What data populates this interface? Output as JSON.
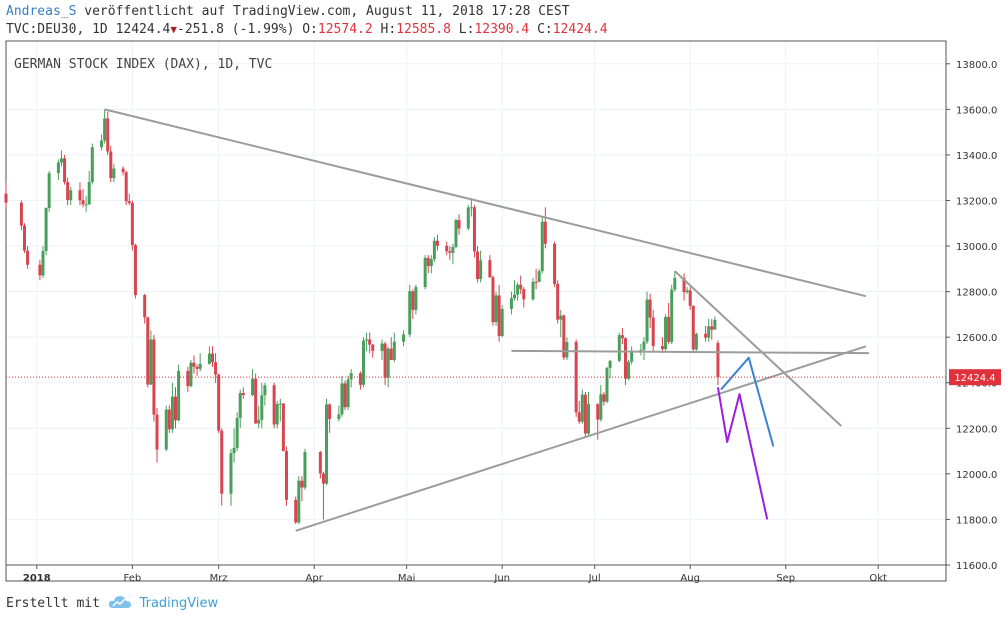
{
  "header": {
    "author": "Andreas_S",
    "published_text": "veröffentlicht auf TradingView.com, August 11, 2018 17:28 CEST",
    "symbol_text": "TVC:DEU30, 1D",
    "last_price": "12424.4",
    "change_text": "-251.8 (-1.99%)",
    "o_label": "O:",
    "o_value": "12574.2",
    "h_label": "H:",
    "h_value": "12585.8",
    "l_label": "L:",
    "l_value": "12390.4",
    "c_label": "C:",
    "c_value": "12424.4"
  },
  "footer": {
    "created_with": "Erstellt mit",
    "brand": "TradingView"
  },
  "colors": {
    "up": "#4a9e5c",
    "down": "#d64550",
    "trendline": "#9c9c9c",
    "price_line": "#e0323c",
    "price_badge": "#e0323c",
    "forecast_blue": "#3a82d6",
    "forecast_purple": "#9b1ee0",
    "grid": "#eef1f5",
    "axis_text": "#333333"
  },
  "chart_data": {
    "type": "candlestick",
    "title": "GERMAN STOCK INDEX (DAX), 1D, TVC",
    "ylim": [
      11600,
      13900
    ],
    "y_ticks": [
      11600,
      11800,
      12000,
      12200,
      12400,
      12600,
      12800,
      13000,
      13200,
      13400,
      13600,
      13800
    ],
    "y_tick_labels": [
      "11600.0",
      "11800.0",
      "12000.0",
      "12200.0",
      "12400.0",
      "12600.0",
      "12800.0",
      "13000.0",
      "13200.0",
      "13400.0",
      "13600.0",
      "13800.0"
    ],
    "x_labels": [
      "2018",
      "Feb",
      "Mrz",
      "Apr",
      "Mai",
      "Jun",
      "Jul",
      "Aug",
      "Sep",
      "Okt"
    ],
    "x_label_dates": [
      "2018-01-01",
      "2018-02-01",
      "2018-03-01",
      "2018-04-01",
      "2018-05-01",
      "2018-06-01",
      "2018-07-01",
      "2018-08-01",
      "2018-09-01",
      "2018-10-01"
    ],
    "x_start": "2017-12-22",
    "x_end": "2018-10-23",
    "last_price_label": "12424.4",
    "last_price": 12424.4,
    "candles": [
      [
        "2017-12-22",
        13230,
        13280,
        13170,
        13190
      ],
      [
        "2017-12-27",
        13190,
        13200,
        13070,
        13090
      ],
      [
        "2017-12-28",
        13090,
        13100,
        12970,
        12980
      ],
      [
        "2017-12-29",
        12980,
        13000,
        12900,
        12918
      ],
      [
        "2018-01-02",
        12918,
        12940,
        12850,
        12871
      ],
      [
        "2018-01-03",
        12871,
        13000,
        12860,
        12978
      ],
      [
        "2018-01-04",
        12978,
        13170,
        12960,
        13167
      ],
      [
        "2018-01-05",
        13167,
        13330,
        13150,
        13320
      ],
      [
        "2018-01-08",
        13320,
        13380,
        13290,
        13367
      ],
      [
        "2018-01-09",
        13367,
        13420,
        13350,
        13385
      ],
      [
        "2018-01-10",
        13385,
        13400,
        13270,
        13281
      ],
      [
        "2018-01-11",
        13281,
        13300,
        13180,
        13202
      ],
      [
        "2018-01-12",
        13202,
        13260,
        13180,
        13245
      ],
      [
        "2018-01-15",
        13245,
        13280,
        13180,
        13201
      ],
      [
        "2018-01-16",
        13201,
        13250,
        13170,
        13183
      ],
      [
        "2018-01-17",
        13183,
        13220,
        13150,
        13183
      ],
      [
        "2018-01-18",
        13183,
        13330,
        13180,
        13281
      ],
      [
        "2018-01-19",
        13281,
        13450,
        13270,
        13434
      ],
      [
        "2018-01-22",
        13434,
        13490,
        13420,
        13463
      ],
      [
        "2018-01-23",
        13463,
        13600,
        13450,
        13560
      ],
      [
        "2018-01-24",
        13560,
        13590,
        13400,
        13415
      ],
      [
        "2018-01-25",
        13415,
        13440,
        13280,
        13298
      ],
      [
        "2018-01-26",
        13298,
        13360,
        13280,
        13340
      ],
      [
        "2018-01-29",
        13340,
        13350,
        13310,
        13324
      ],
      [
        "2018-01-30",
        13324,
        13330,
        13180,
        13197
      ],
      [
        "2018-01-31",
        13197,
        13230,
        13180,
        13189
      ],
      [
        "2018-02-01",
        13189,
        13200,
        12980,
        13004
      ],
      [
        "2018-02-02",
        13004,
        13010,
        12770,
        12785
      ],
      [
        "2018-02-05",
        12785,
        12790,
        12660,
        12687
      ],
      [
        "2018-02-06",
        12687,
        12690,
        12380,
        12392
      ],
      [
        "2018-02-07",
        12392,
        12630,
        12390,
        12590
      ],
      [
        "2018-02-08",
        12590,
        12610,
        12230,
        12260
      ],
      [
        "2018-02-09",
        12260,
        12290,
        12050,
        12107
      ],
      [
        "2018-02-12",
        12107,
        12300,
        12100,
        12282
      ],
      [
        "2018-02-13",
        12282,
        12300,
        12180,
        12196
      ],
      [
        "2018-02-14",
        12196,
        12400,
        12180,
        12339
      ],
      [
        "2018-02-15",
        12339,
        12380,
        12200,
        12235
      ],
      [
        "2018-02-16",
        12235,
        12480,
        12230,
        12452
      ],
      [
        "2018-02-19",
        12452,
        12470,
        12360,
        12385
      ],
      [
        "2018-02-20",
        12385,
        12500,
        12380,
        12488
      ],
      [
        "2018-02-21",
        12488,
        12520,
        12440,
        12470
      ],
      [
        "2018-02-22",
        12470,
        12480,
        12430,
        12461
      ],
      [
        "2018-02-23",
        12461,
        12530,
        12450,
        12483
      ],
      [
        "2018-02-26",
        12483,
        12560,
        12480,
        12528
      ],
      [
        "2018-02-27",
        12528,
        12560,
        12470,
        12490
      ],
      [
        "2018-02-28",
        12490,
        12530,
        12400,
        12436
      ],
      [
        "2018-03-01",
        12436,
        12440,
        12180,
        12190
      ],
      [
        "2018-03-02",
        12190,
        12200,
        11860,
        11913
      ],
      [
        "2018-03-05",
        11913,
        12110,
        11860,
        12091
      ],
      [
        "2018-03-06",
        12091,
        12200,
        12050,
        12114
      ],
      [
        "2018-03-07",
        12114,
        12270,
        12100,
        12245
      ],
      [
        "2018-03-08",
        12245,
        12370,
        12200,
        12355
      ],
      [
        "2018-03-09",
        12355,
        12380,
        12330,
        12346
      ],
      [
        "2018-03-12",
        12346,
        12460,
        12340,
        12418
      ],
      [
        "2018-03-13",
        12418,
        12440,
        12220,
        12221
      ],
      [
        "2018-03-14",
        12221,
        12300,
        12200,
        12237
      ],
      [
        "2018-03-15",
        12237,
        12400,
        12200,
        12345
      ],
      [
        "2018-03-16",
        12345,
        12400,
        12300,
        12389
      ],
      [
        "2018-03-19",
        12389,
        12400,
        12200,
        12217
      ],
      [
        "2018-03-20",
        12217,
        12320,
        12200,
        12307
      ],
      [
        "2018-03-21",
        12307,
        12330,
        12230,
        12309
      ],
      [
        "2018-03-22",
        12309,
        12310,
        12100,
        12100
      ],
      [
        "2018-03-23",
        12100,
        12120,
        11860,
        11886
      ],
      [
        "2018-03-26",
        11886,
        11900,
        11780,
        11787
      ],
      [
        "2018-03-27",
        11787,
        11990,
        11780,
        11970
      ],
      [
        "2018-03-28",
        11970,
        11990,
        11880,
        11940
      ],
      [
        "2018-03-29",
        11940,
        12110,
        11930,
        12096
      ],
      [
        "2018-04-03",
        12096,
        12100,
        11980,
        12002
      ],
      [
        "2018-04-04",
        12002,
        12010,
        11800,
        11957
      ],
      [
        "2018-04-05",
        11957,
        12330,
        11950,
        12305
      ],
      [
        "2018-04-06",
        12305,
        12310,
        12180,
        12241
      ],
      [
        "2018-04-09",
        12241,
        12300,
        12230,
        12261
      ],
      [
        "2018-04-10",
        12261,
        12430,
        12250,
        12397
      ],
      [
        "2018-04-11",
        12397,
        12410,
        12280,
        12293
      ],
      [
        "2018-04-12",
        12293,
        12430,
        12280,
        12415
      ],
      [
        "2018-04-13",
        12415,
        12460,
        12380,
        12442
      ],
      [
        "2018-04-16",
        12442,
        12450,
        12370,
        12391
      ],
      [
        "2018-04-17",
        12391,
        12600,
        12380,
        12585
      ],
      [
        "2018-04-18",
        12585,
        12620,
        12540,
        12590
      ],
      [
        "2018-04-19",
        12590,
        12620,
        12530,
        12567
      ],
      [
        "2018-04-20",
        12567,
        12570,
        12510,
        12540
      ],
      [
        "2018-04-23",
        12540,
        12590,
        12500,
        12572
      ],
      [
        "2018-04-24",
        12572,
        12580,
        12390,
        12422
      ],
      [
        "2018-04-25",
        12422,
        12560,
        12380,
        12550
      ],
      [
        "2018-04-26",
        12550,
        12600,
        12500,
        12500
      ],
      [
        "2018-04-27",
        12500,
        12620,
        12490,
        12580
      ],
      [
        "2018-04-30",
        12580,
        12630,
        12560,
        12612
      ],
      [
        "2018-05-02",
        12612,
        12830,
        12600,
        12802
      ],
      [
        "2018-05-03",
        12802,
        12810,
        12680,
        12720
      ],
      [
        "2018-05-04",
        12720,
        12830,
        12700,
        12820
      ],
      [
        "2018-05-07",
        12820,
        12960,
        12810,
        12948
      ],
      [
        "2018-05-08",
        12948,
        12960,
        12880,
        12912
      ],
      [
        "2018-05-09",
        12912,
        12960,
        12880,
        12943
      ],
      [
        "2018-05-10",
        12943,
        13040,
        12930,
        13023
      ],
      [
        "2018-05-11",
        13023,
        13050,
        12980,
        13001
      ],
      [
        "2018-05-14",
        13001,
        13020,
        12960,
        12977
      ],
      [
        "2018-05-15",
        12977,
        13000,
        12940,
        12970
      ],
      [
        "2018-05-16",
        12970,
        13010,
        12920,
        12996
      ],
      [
        "2018-05-17",
        12996,
        13120,
        12990,
        13114
      ],
      [
        "2018-05-18",
        13114,
        13140,
        13050,
        13077
      ],
      [
        "2018-05-21",
        13077,
        13180,
        13070,
        13169
      ],
      [
        "2018-05-22",
        13169,
        13210,
        13130,
        13170
      ],
      [
        "2018-05-23",
        13170,
        13180,
        12950,
        12976
      ],
      [
        "2018-05-24",
        12976,
        13000,
        12840,
        12855
      ],
      [
        "2018-05-25",
        12855,
        12980,
        12840,
        12938
      ],
      [
        "2018-05-28",
        12938,
        12960,
        12860,
        12863
      ],
      [
        "2018-05-29",
        12863,
        12870,
        12650,
        12666
      ],
      [
        "2018-05-30",
        12666,
        12800,
        12650,
        12783
      ],
      [
        "2018-05-31",
        12783,
        12830,
        12580,
        12605
      ],
      [
        "2018-06-01",
        12605,
        12740,
        12600,
        12724
      ],
      [
        "2018-06-04",
        12724,
        12800,
        12700,
        12771
      ],
      [
        "2018-06-05",
        12771,
        12850,
        12760,
        12787
      ],
      [
        "2018-06-06",
        12787,
        12840,
        12760,
        12830
      ],
      [
        "2018-06-07",
        12830,
        12870,
        12790,
        12811
      ],
      [
        "2018-06-08",
        12811,
        12820,
        12730,
        12766
      ],
      [
        "2018-06-11",
        12766,
        12860,
        12760,
        12843
      ],
      [
        "2018-06-12",
        12843,
        12900,
        12810,
        12842
      ],
      [
        "2018-06-13",
        12842,
        12900,
        12850,
        12890
      ],
      [
        "2018-06-14",
        12890,
        13130,
        12880,
        13107
      ],
      [
        "2018-06-15",
        13107,
        13170,
        12990,
        13010
      ],
      [
        "2018-06-18",
        13010,
        13020,
        12820,
        12834
      ],
      [
        "2018-06-19",
        12834,
        12850,
        12660,
        12677
      ],
      [
        "2018-06-20",
        12677,
        12720,
        12600,
        12695
      ],
      [
        "2018-06-21",
        12695,
        12700,
        12500,
        12511
      ],
      [
        "2018-06-22",
        12511,
        12600,
        12500,
        12579
      ],
      [
        "2018-06-25",
        12579,
        12590,
        12250,
        12270
      ],
      [
        "2018-06-26",
        12270,
        12320,
        12220,
        12229
      ],
      [
        "2018-06-27",
        12229,
        12370,
        12220,
        12348
      ],
      [
        "2018-06-28",
        12348,
        12360,
        12160,
        12177
      ],
      [
        "2018-06-29",
        12177,
        12360,
        12170,
        12306
      ],
      [
        "2018-07-02",
        12306,
        12310,
        12150,
        12238
      ],
      [
        "2018-07-03",
        12238,
        12390,
        12230,
        12349
      ],
      [
        "2018-07-04",
        12349,
        12360,
        12300,
        12317
      ],
      [
        "2018-07-05",
        12317,
        12470,
        12310,
        12465
      ],
      [
        "2018-07-06",
        12465,
        12500,
        12420,
        12496
      ],
      [
        "2018-07-09",
        12496,
        12620,
        12490,
        12609
      ],
      [
        "2018-07-10",
        12609,
        12640,
        12570,
        12595
      ],
      [
        "2018-07-11",
        12595,
        12600,
        12390,
        12418
      ],
      [
        "2018-07-12",
        12418,
        12500,
        12410,
        12492
      ],
      [
        "2018-07-13",
        12492,
        12560,
        12480,
        12540
      ],
      [
        "2018-07-16",
        12540,
        12570,
        12520,
        12545
      ],
      [
        "2018-07-17",
        12545,
        12600,
        12500,
        12580
      ],
      [
        "2018-07-18",
        12580,
        12800,
        12570,
        12765
      ],
      [
        "2018-07-19",
        12765,
        12790,
        12640,
        12686
      ],
      [
        "2018-07-20",
        12686,
        12720,
        12540,
        12561
      ],
      [
        "2018-07-23",
        12561,
        12600,
        12530,
        12548
      ],
      [
        "2018-07-24",
        12548,
        12700,
        12540,
        12689
      ],
      [
        "2018-07-25",
        12689,
        12750,
        12570,
        12579
      ],
      [
        "2018-07-26",
        12579,
        12830,
        12570,
        12809
      ],
      [
        "2018-07-27",
        12809,
        12890,
        12800,
        12860
      ],
      [
        "2018-07-30",
        12860,
        12880,
        12760,
        12798
      ],
      [
        "2018-07-31",
        12798,
        12820,
        12790,
        12805
      ],
      [
        "2018-08-01",
        12805,
        12820,
        12720,
        12737
      ],
      [
        "2018-08-02",
        12737,
        12740,
        12530,
        12546
      ],
      [
        "2018-08-03",
        12546,
        12620,
        12540,
        12615
      ],
      [
        "2018-08-06",
        12615,
        12650,
        12580,
        12598
      ],
      [
        "2018-08-07",
        12598,
        12680,
        12580,
        12648
      ],
      [
        "2018-08-08",
        12648,
        12680,
        12590,
        12633
      ],
      [
        "2018-08-09",
        12633,
        12690,
        12640,
        12676
      ],
      [
        "2018-08-10",
        12574.2,
        12585.8,
        12390.4,
        12424.4
      ]
    ],
    "drawings": {
      "trendlines": [
        {
          "from": [
            "2018-01-23",
            13600
          ],
          "to": [
            "2018-09-27",
            12780
          ]
        },
        {
          "from": [
            "2018-03-26",
            11750
          ],
          "to": [
            "2018-09-27",
            12560
          ]
        },
        {
          "from": [
            "2018-06-04",
            12540
          ],
          "to": [
            "2018-09-28",
            12530
          ]
        },
        {
          "from": [
            "2018-07-27",
            12890
          ],
          "to": [
            "2018-09-19",
            12210
          ]
        }
      ],
      "forecast_blue": [
        [
          "2018-08-11",
          12370
        ],
        [
          "2018-08-20",
          12510
        ],
        [
          "2018-08-28",
          12120
        ]
      ],
      "forecast_purple": [
        [
          "2018-08-10",
          12380
        ],
        [
          "2018-08-13",
          12140
        ],
        [
          "2018-08-17",
          12350
        ],
        [
          "2018-08-26",
          11800
        ]
      ]
    }
  }
}
